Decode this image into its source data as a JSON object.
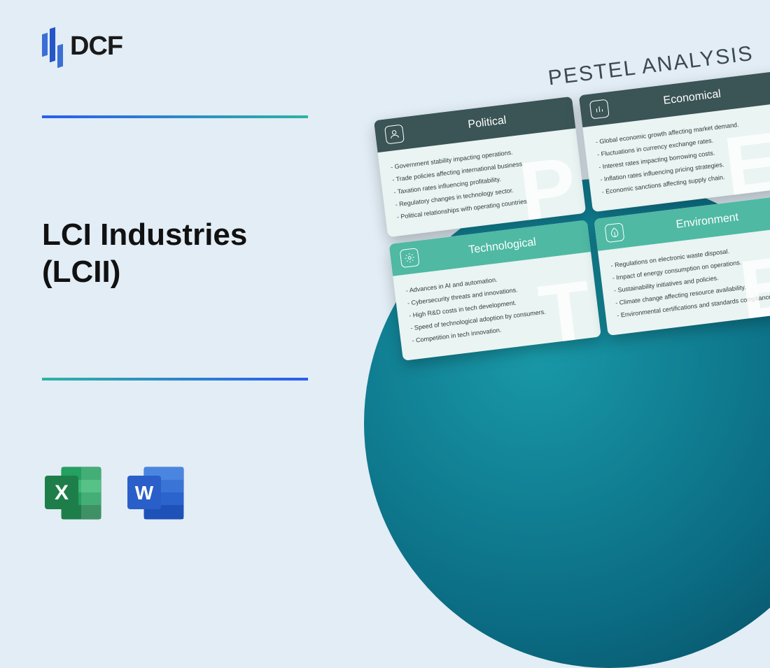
{
  "brand": {
    "name": "DCF"
  },
  "title": {
    "line1": "LCI Industries",
    "line2": "(LCII)"
  },
  "analysis": {
    "heading": "PESTEL ANALYSIS",
    "cards": [
      {
        "title": "Political",
        "header_style": "dark",
        "watermark": "P",
        "icon": "person",
        "items": [
          "- Government stability impacting operations.",
          "- Trade policies affecting international business.",
          "- Taxation rates influencing profitability.",
          "- Regulatory changes in technology sector.",
          "- Political relationships with operating countries."
        ]
      },
      {
        "title": "Economical",
        "header_style": "dark",
        "watermark": "E",
        "icon": "chart",
        "items": [
          "- Global economic growth affecting market demand.",
          "- Fluctuations in currency exchange rates.",
          "- Interest rates impacting borrowing costs.",
          "- Inflation rates influencing pricing strategies.",
          "- Economic sanctions affecting supply chain."
        ]
      },
      {
        "title": "Technological",
        "header_style": "teal",
        "watermark": "T",
        "icon": "gear",
        "items": [
          "- Advances in AI and automation.",
          "- Cybersecurity threats and innovations.",
          "- High R&D costs in tech development.",
          "- Speed of technological adoption by consumers.",
          "- Competition in tech innovation."
        ]
      },
      {
        "title": "Environment",
        "header_style": "teal",
        "watermark": "E",
        "icon": "leaf",
        "items": [
          "- Regulations on electronic waste disposal.",
          "- Impact of energy consumption on operations.",
          "- Sustainability initiatives and policies.",
          "- Climate change affecting resource availability.",
          "- Environmental certifications and standards compliance."
        ]
      }
    ]
  },
  "colors": {
    "page_bg": "#e2edf5",
    "circle_gradient_1": "#1999a8",
    "circle_gradient_2": "#064a5f",
    "header_dark": "#3b5456",
    "header_teal": "#4fb9a3",
    "card_bg": "#eaf4f3",
    "gradient_blue": "#2a5cf0",
    "gradient_teal": "#2fb3a3",
    "excel_green": "#1e7e4a",
    "word_blue": "#2a5fc9"
  },
  "footer_icons": {
    "excel": "X",
    "word": "W"
  }
}
